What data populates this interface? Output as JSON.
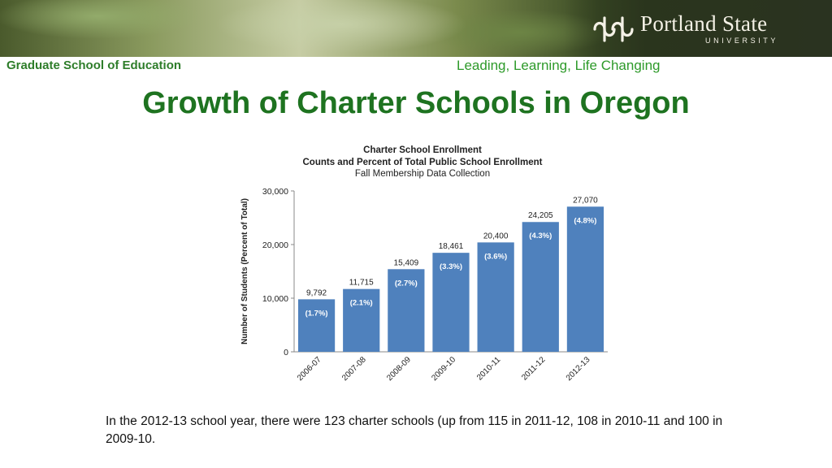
{
  "header": {
    "university_name": "Portland State",
    "university_sub": "UNIVERSITY",
    "school": "Graduate School of Education",
    "tagline": "Leading, Learning, Life Changing"
  },
  "slide": {
    "title": "Growth of Charter Schools in Oregon",
    "footnote": "In the 2012-13 school year, there were 123 charter schools (up from 115 in 2011-12, 108 in 2010-11 and 100 in 2009-10."
  },
  "colors": {
    "bar": "#4f81bd",
    "title_green": "#1e7320",
    "tagline_green": "#2e9a2a"
  },
  "chart_data": {
    "type": "bar",
    "title": "Charter School Enrollment",
    "subtitle": "Counts and Percent of Total Public School Enrollment",
    "subtitle2": "Fall Membership Data Collection",
    "ylabel": "Number of Students (Percent of Total)",
    "xlabel": "",
    "ylim": [
      0,
      30000
    ],
    "yticks": [
      0,
      10000,
      20000,
      30000
    ],
    "ytick_labels": [
      "0",
      "10,000",
      "20,000",
      "30,000"
    ],
    "categories": [
      "2006-07",
      "2007-08",
      "2008-09",
      "2009-10",
      "2010-11",
      "2011-12",
      "2012-13"
    ],
    "values": [
      9792,
      11715,
      15409,
      18461,
      20400,
      24205,
      27070
    ],
    "value_labels": [
      "9,792",
      "11,715",
      "15,409",
      "18,461",
      "20,400",
      "24,205",
      "27,070"
    ],
    "percent_labels": [
      "(1.7%)",
      "(2.1%)",
      "(2.7%)",
      "(3.3%)",
      "(3.6%)",
      "(4.3%)",
      "(4.8%)"
    ],
    "grid": false,
    "legend": "none"
  }
}
